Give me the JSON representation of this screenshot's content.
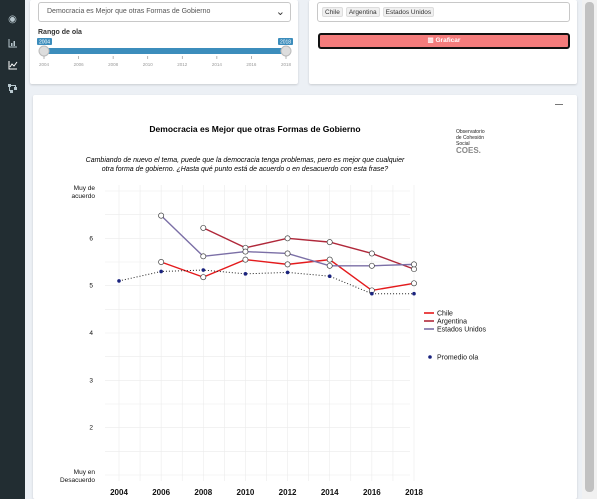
{
  "sidebar": {
    "icons": [
      "palette-icon",
      "bar-chart-icon",
      "line-chart-icon",
      "network-icon"
    ]
  },
  "filters": {
    "question_select": "Democracia es Mejor que otras Formas de Gobierno",
    "range_label": "Rango de ola",
    "slider": {
      "min_label": "2004",
      "max_label": "2018",
      "ticks": [
        "2004",
        "2006",
        "2008",
        "2010",
        "2012",
        "2014",
        "2016",
        "2018"
      ]
    }
  },
  "countries": {
    "chips": [
      "Chile",
      "Argentina",
      "Estados Unidos"
    ],
    "button_label": "Graficar"
  },
  "chart_data": {
    "type": "line",
    "title": "Democracia es Mejor que otras Formas de Gobierno",
    "subtitle_line1": "Cambiando de nuevo el tema, puede que la democracia tenga problemas, pero es mejor que cualquier",
    "subtitle_line2": "otra forma de gobierno. ¿Hasta qué punto está de acuerdo o en desacuerdo con esta frase?",
    "logo_lines": [
      "Observatorio",
      "de Cohesión",
      "Social",
      "COES."
    ],
    "ylim": [
      1,
      7
    ],
    "xlim": [
      2004,
      2018
    ],
    "y_ticks": [
      {
        "value": 7,
        "label": "Muy de acuerdo"
      },
      {
        "value": 6,
        "label": "6"
      },
      {
        "value": 5,
        "label": "5"
      },
      {
        "value": 4,
        "label": "4"
      },
      {
        "value": 3,
        "label": "3"
      },
      {
        "value": 2,
        "label": "2"
      },
      {
        "value": 1,
        "label": "Muy en Desacuerdo"
      }
    ],
    "x_ticks": [
      2004,
      2006,
      2008,
      2010,
      2012,
      2014,
      2016,
      2018
    ],
    "series": [
      {
        "name": "Chile",
        "color": "#e41a1c",
        "style": "solid",
        "points": [
          [
            2006,
            5.5
          ],
          [
            2008,
            5.18
          ],
          [
            2010,
            5.55
          ],
          [
            2012,
            5.45
          ],
          [
            2014,
            5.55
          ],
          [
            2016,
            4.9
          ],
          [
            2018,
            5.05
          ]
        ]
      },
      {
        "name": "Argentina",
        "color": "#b0283a",
        "style": "solid",
        "points": [
          [
            2008,
            6.22
          ],
          [
            2010,
            5.8
          ],
          [
            2012,
            6.0
          ],
          [
            2014,
            5.92
          ],
          [
            2016,
            5.68
          ],
          [
            2018,
            5.35
          ]
        ]
      },
      {
        "name": "Estados Unidos",
        "color": "#7b6fa6",
        "style": "solid",
        "points": [
          [
            2006,
            6.48
          ],
          [
            2008,
            5.62
          ],
          [
            2010,
            5.72
          ],
          [
            2012,
            5.68
          ],
          [
            2014,
            5.42
          ],
          [
            2016,
            5.42
          ],
          [
            2018,
            5.45
          ]
        ]
      },
      {
        "name": "Promedio ola",
        "color": "#1a237e",
        "style": "dotted",
        "points": [
          [
            2004,
            5.1
          ],
          [
            2006,
            5.3
          ],
          [
            2008,
            5.33
          ],
          [
            2010,
            5.25
          ],
          [
            2012,
            5.28
          ],
          [
            2014,
            5.2
          ],
          [
            2016,
            4.83
          ],
          [
            2018,
            4.83
          ]
        ]
      }
    ],
    "legend_position": "right"
  }
}
